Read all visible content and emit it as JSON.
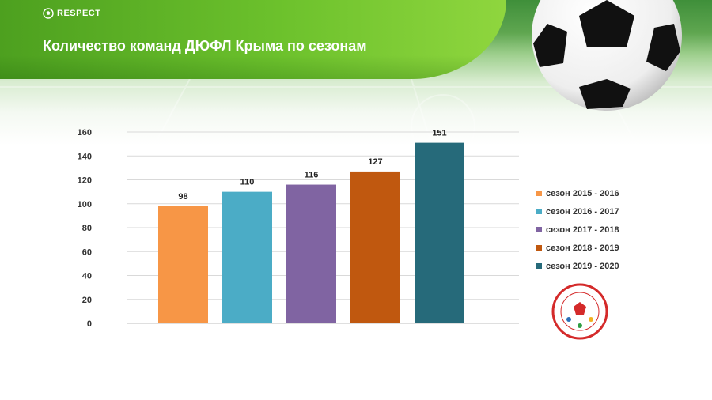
{
  "brand": {
    "name": "RESPECT"
  },
  "header": {
    "title": "Количество команд ДЮФЛ Крыма по сезонам"
  },
  "icons": {
    "brand_logo": "soccer-ball-icon",
    "corner_image": "soccer-ball-icon",
    "league_logo": "league-emblem-icon"
  },
  "colors": {
    "banner": "#5cb028",
    "s1": "#f79646",
    "s2": "#4bacc6",
    "s3": "#8064a2",
    "s4": "#c0580f",
    "s5": "#266a7a"
  },
  "chart_data": {
    "type": "bar",
    "title": "Количество команд ДЮФЛ Крыма по сезонам",
    "ylim": [
      0,
      160
    ],
    "yticks": [
      0,
      20,
      40,
      60,
      80,
      100,
      120,
      140,
      160
    ],
    "grid": true,
    "legend": "right",
    "series": [
      {
        "name": "сезон 2015 - 2016",
        "values": [
          98
        ],
        "color": "#f79646"
      },
      {
        "name": "сезон 2016 - 2017",
        "values": [
          110
        ],
        "color": "#4bacc6"
      },
      {
        "name": "сезон 2017 - 2018",
        "values": [
          116
        ],
        "color": "#8064a2"
      },
      {
        "name": "сезон 2018 - 2019",
        "values": [
          127
        ],
        "color": "#c0580f"
      },
      {
        "name": "сезон 2019 - 2020",
        "values": [
          151
        ],
        "color": "#266a7a"
      }
    ]
  }
}
